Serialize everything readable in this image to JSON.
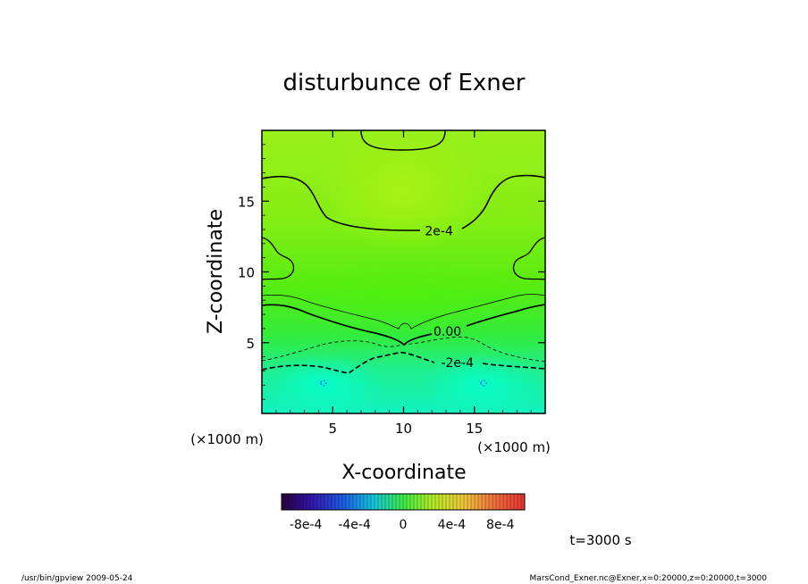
{
  "chart_data": {
    "type": "heatmap",
    "title": "disturbunce of Exner",
    "xlabel": "X-coordinate",
    "ylabel": "Z-coordinate",
    "x_unit": "(×1000 m)",
    "y_unit": "(×1000 m)",
    "xlim": [
      0,
      20
    ],
    "ylim": [
      0,
      20
    ],
    "x_ticks": [
      5,
      10,
      15
    ],
    "y_ticks": [
      5,
      10,
      15
    ],
    "contour_labels": [
      {
        "text": "2e-4",
        "x": 12.5,
        "z": 12.9
      },
      {
        "text": "0.00",
        "x": 13.1,
        "z": 5.8
      },
      {
        "text": "-2e-4",
        "x": 13.8,
        "z": 3.6
      }
    ],
    "colorbar": {
      "range": [
        -0.001,
        0.001
      ],
      "tick_labels": [
        "-8e-4",
        "-4e-4",
        "0",
        "4e-4",
        "8e-4"
      ],
      "tick_values": [
        -0.0008,
        -0.0004,
        0,
        0.0004,
        0.0008
      ]
    },
    "time_label": "t=3000 s"
  },
  "footer": {
    "program": "/usr/bin/gpview  2009-05-24",
    "source": "MarsCond_Exner.nc@Exner,x=0:20000,z=0:20000,t=3000"
  }
}
